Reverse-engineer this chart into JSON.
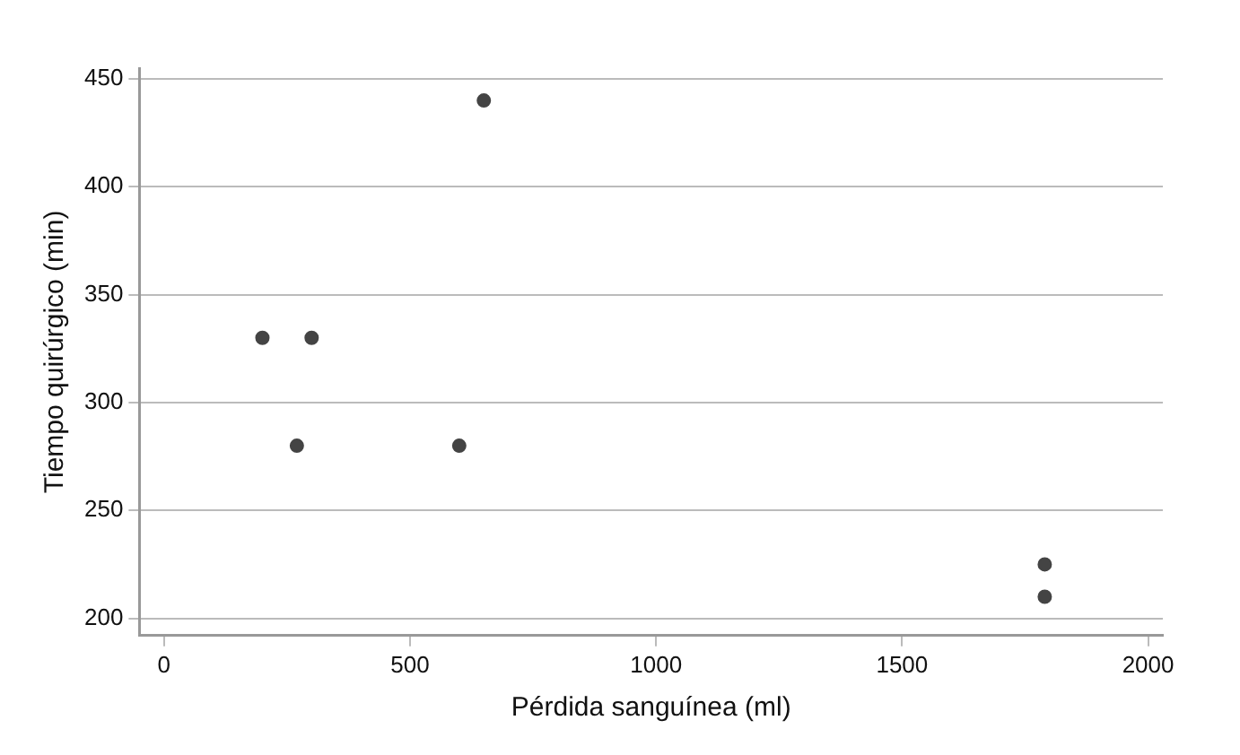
{
  "chart_data": {
    "type": "scatter",
    "xlabel": "Pérdida sanguínea (ml)",
    "ylabel": "Tiempo quirúrgico (min)",
    "x": [
      200,
      300,
      270,
      600,
      650,
      1790,
      1790
    ],
    "values": [
      330,
      330,
      280,
      280,
      440,
      225,
      210
    ],
    "color": "#444444",
    "marker": "circle",
    "xlim": [
      -50,
      2030
    ],
    "xticks": [
      0,
      500,
      1000,
      1500,
      2000
    ],
    "ylim": [
      192,
      455
    ],
    "yticks": [
      200,
      250,
      300,
      350,
      400,
      450
    ],
    "grid": "y",
    "legend": false
  }
}
